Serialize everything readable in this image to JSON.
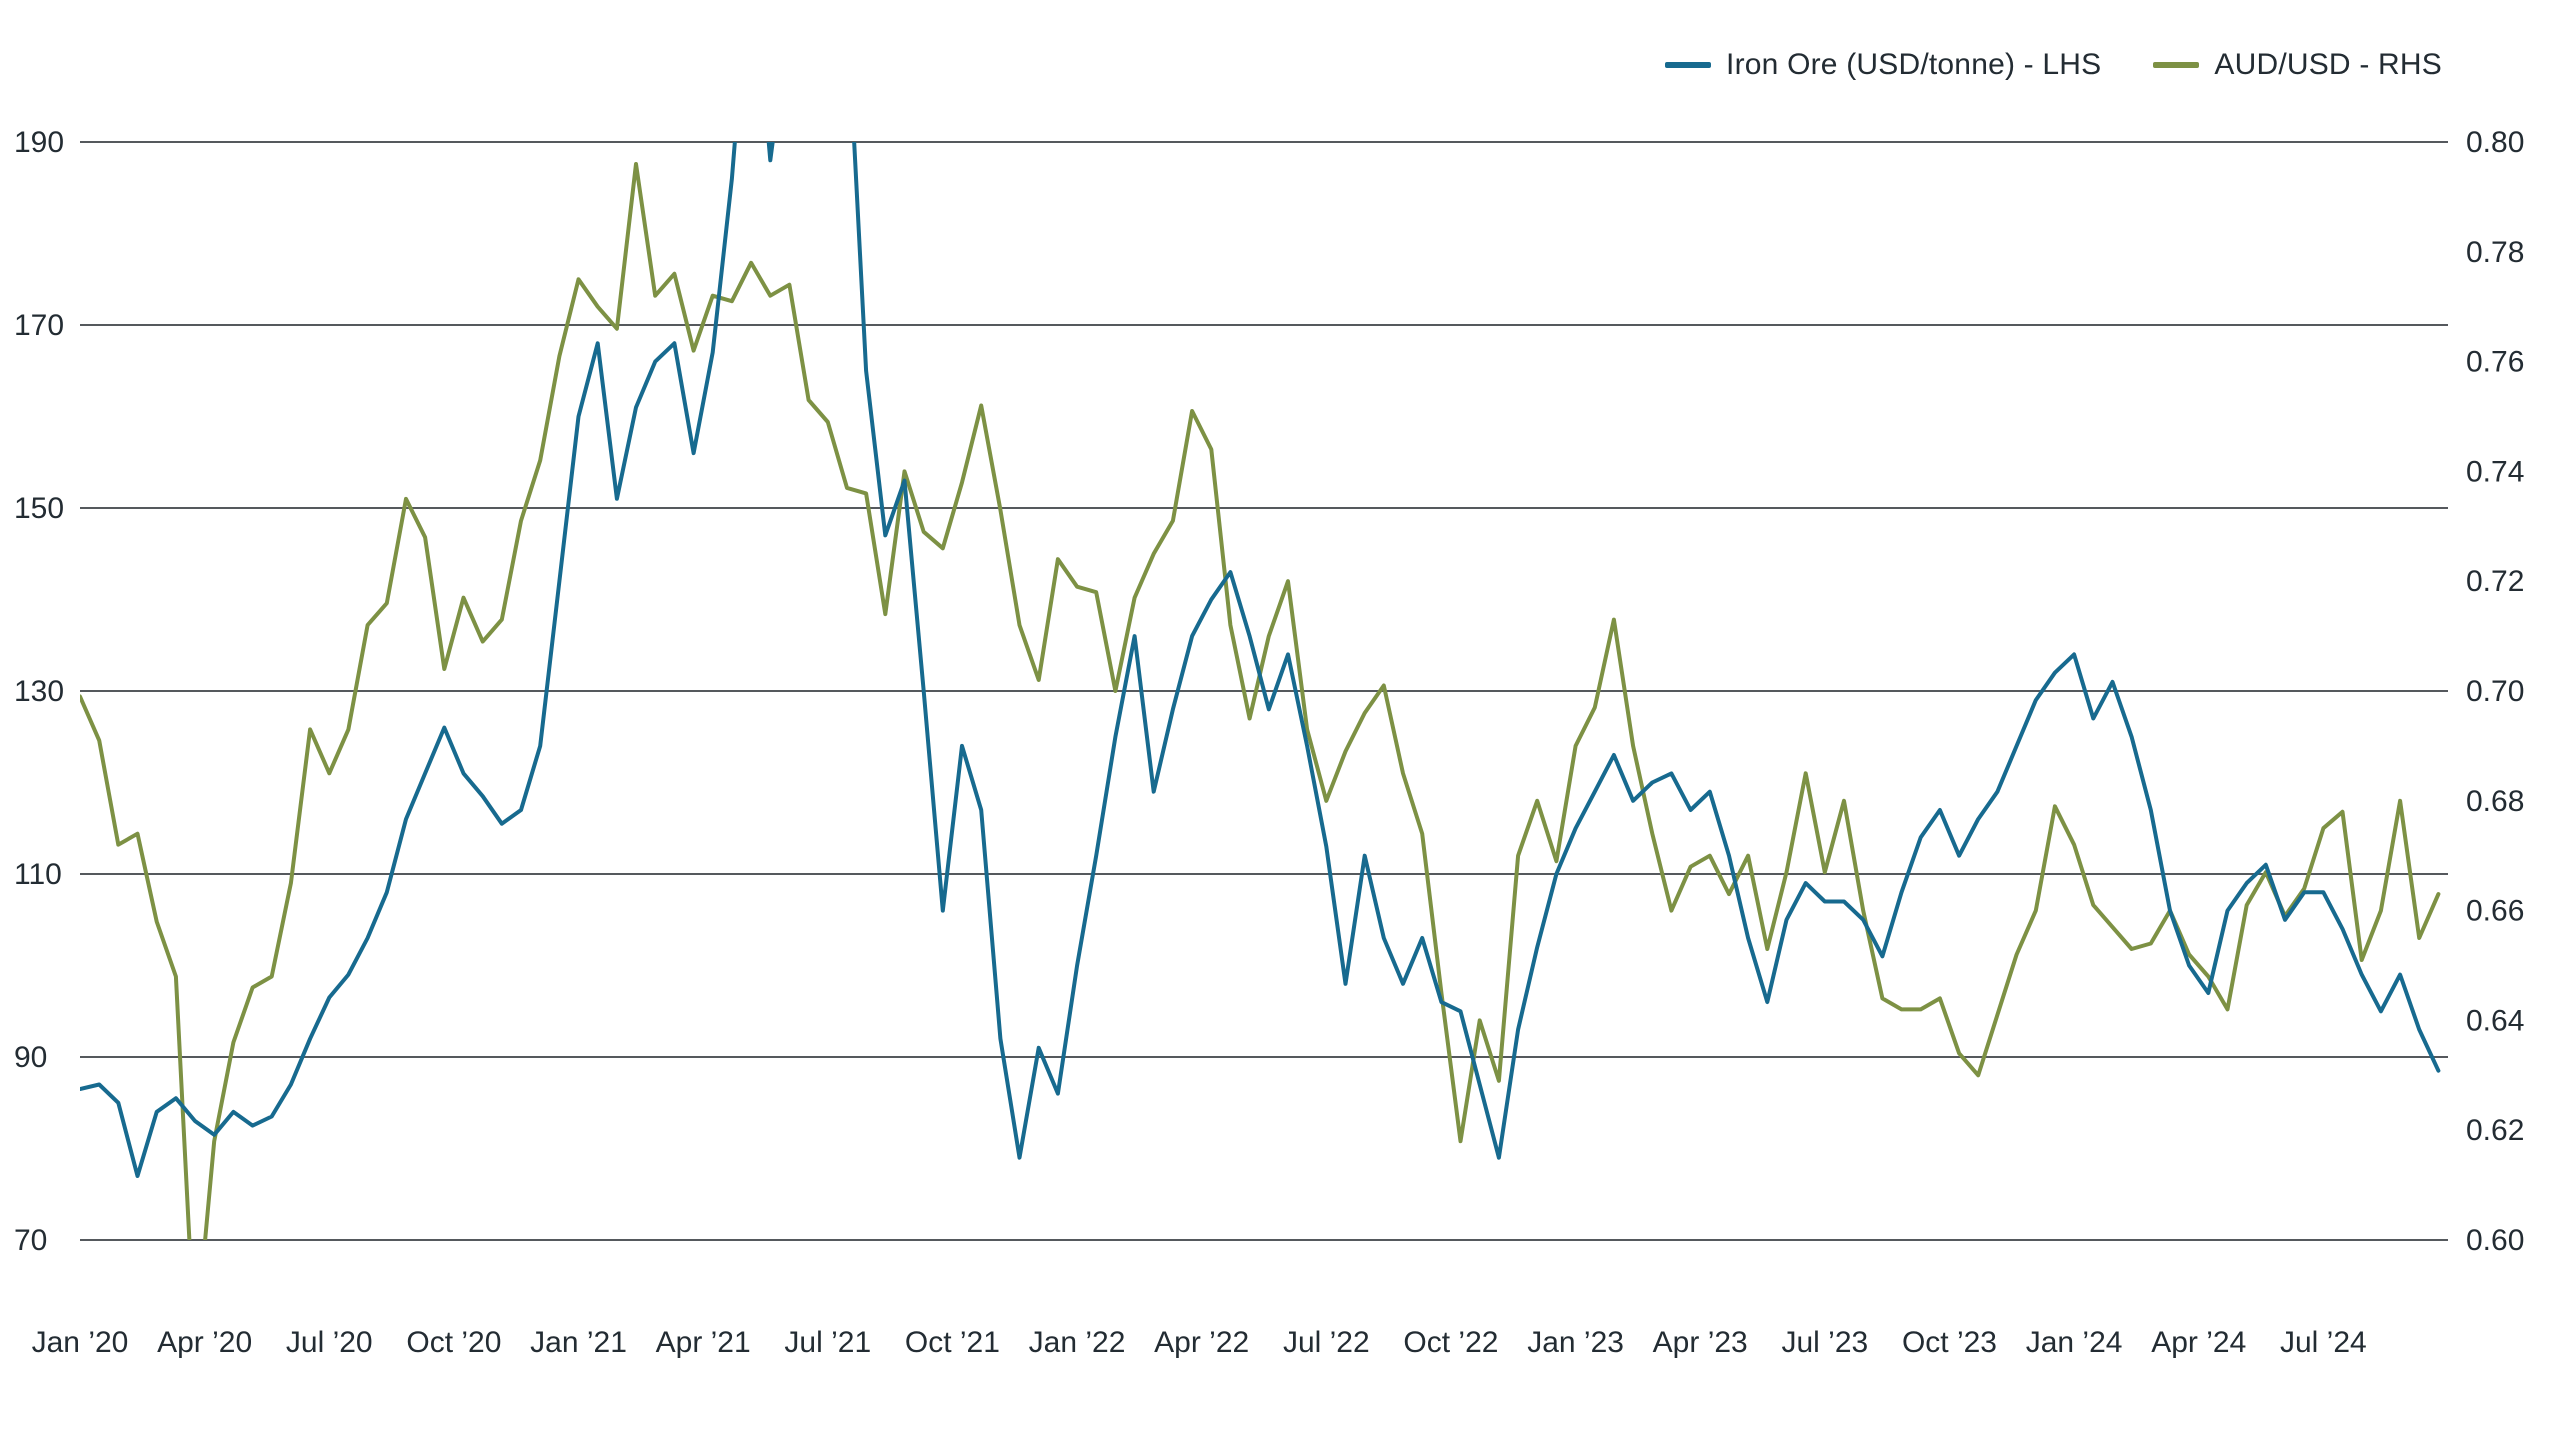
{
  "legend": {
    "items": [
      {
        "label": "Iron Ore (USD/tonne) - LHS",
        "color": "#176a8f"
      },
      {
        "label": "AUD/USD - RHS",
        "color": "#7d9144"
      }
    ]
  },
  "chart_data": {
    "type": "line",
    "title": "",
    "grid": "horizontal-only",
    "legend_position": "top-right",
    "x_encoding": "decimal years, biweekly sampling",
    "x_start_year": 2020.0,
    "x_step_years": 0.0384615,
    "x_domain": [
      2020.0,
      2024.75
    ],
    "x_tick_positions": [
      2020.0,
      2020.25,
      2020.5,
      2020.75,
      2021.0,
      2021.25,
      2021.5,
      2021.75,
      2022.0,
      2022.25,
      2022.5,
      2022.75,
      2023.0,
      2023.25,
      2023.5,
      2023.75,
      2024.0,
      2024.25,
      2024.5
    ],
    "x_tick_labels": [
      "Jan ’20",
      "Apr ’20",
      "Jul ’20",
      "Oct ’20",
      "Jan ’21",
      "Apr ’21",
      "Jul ’21",
      "Oct ’21",
      "Jan ’22",
      "Apr ’22",
      "Jul ’22",
      "Oct ’22",
      "Jan ’23",
      "Apr ’23",
      "Jul ’23",
      "Oct ’23",
      "Jan ’24",
      "Apr ’24",
      "Jul ’24"
    ],
    "left_axis": {
      "name": "Iron Ore (USD/tonne)",
      "min": 70,
      "max": 190,
      "ticks": [
        70,
        90,
        110,
        130,
        150,
        170,
        190
      ]
    },
    "right_axis": {
      "name": "AUD/USD",
      "min": 0.6,
      "max": 0.8,
      "ticks": [
        0.6,
        0.62,
        0.64,
        0.66,
        0.68,
        0.7,
        0.72,
        0.74,
        0.76,
        0.78,
        0.8
      ]
    },
    "series": [
      {
        "name": "Iron Ore (USD/tonne) - LHS",
        "axis": "left",
        "color": "#176a8f",
        "values": [
          86.5,
          87,
          85,
          77,
          84,
          85.5,
          83,
          81.5,
          84,
          82.5,
          83.5,
          87,
          92,
          96.5,
          99,
          103,
          108,
          116,
          121,
          126,
          121,
          118.5,
          115.5,
          117,
          124,
          142,
          160,
          168,
          151,
          161,
          166,
          168,
          156,
          167,
          186,
          212,
          188,
          204,
          215,
          220,
          205,
          165,
          147,
          153,
          130,
          106,
          124,
          117,
          92,
          79,
          91,
          86,
          100,
          112,
          125,
          136,
          119,
          128,
          136,
          140,
          143,
          136,
          128,
          134,
          124,
          113,
          98,
          112,
          103,
          98,
          103,
          96,
          95,
          87,
          79,
          93,
          102,
          110,
          115,
          119,
          123,
          118,
          120,
          121,
          117,
          119,
          112,
          103,
          96,
          105,
          109,
          107,
          107,
          105,
          101,
          108,
          114,
          117,
          112,
          116,
          119,
          124,
          129,
          132,
          134,
          127,
          131,
          125,
          117,
          106,
          100,
          97,
          106,
          109,
          111,
          105,
          108,
          108,
          104,
          99,
          95,
          99,
          93,
          88.5
        ]
      },
      {
        "name": "AUD/USD - RHS",
        "axis": "right",
        "color": "#7d9144",
        "values": [
          0.699,
          0.691,
          0.672,
          0.674,
          0.658,
          0.648,
          0.58,
          0.618,
          0.636,
          0.646,
          0.648,
          0.665,
          0.693,
          0.685,
          0.693,
          0.712,
          0.716,
          0.735,
          0.728,
          0.704,
          0.717,
          0.709,
          0.713,
          0.731,
          0.742,
          0.761,
          0.775,
          0.77,
          0.766,
          0.796,
          0.772,
          0.776,
          0.762,
          0.772,
          0.771,
          0.778,
          0.772,
          0.774,
          0.753,
          0.749,
          0.737,
          0.736,
          0.714,
          0.74,
          0.729,
          0.726,
          0.738,
          0.752,
          0.733,
          0.712,
          0.702,
          0.724,
          0.719,
          0.718,
          0.7,
          0.717,
          0.725,
          0.731,
          0.751,
          0.744,
          0.712,
          0.695,
          0.71,
          0.72,
          0.693,
          0.68,
          0.689,
          0.696,
          0.701,
          0.685,
          0.674,
          0.645,
          0.618,
          0.64,
          0.629,
          0.67,
          0.68,
          0.669,
          0.69,
          0.697,
          0.713,
          0.69,
          0.674,
          0.66,
          0.668,
          0.67,
          0.663,
          0.67,
          0.653,
          0.667,
          0.685,
          0.667,
          0.68,
          0.66,
          0.644,
          0.642,
          0.642,
          0.644,
          0.634,
          0.63,
          0.641,
          0.652,
          0.66,
          0.679,
          0.672,
          0.661,
          0.657,
          0.653,
          0.654,
          0.66,
          0.652,
          0.648,
          0.642,
          0.661,
          0.667,
          0.659,
          0.664,
          0.675,
          0.678,
          0.651,
          0.66,
          0.68,
          0.655,
          0.663
        ]
      }
    ]
  }
}
